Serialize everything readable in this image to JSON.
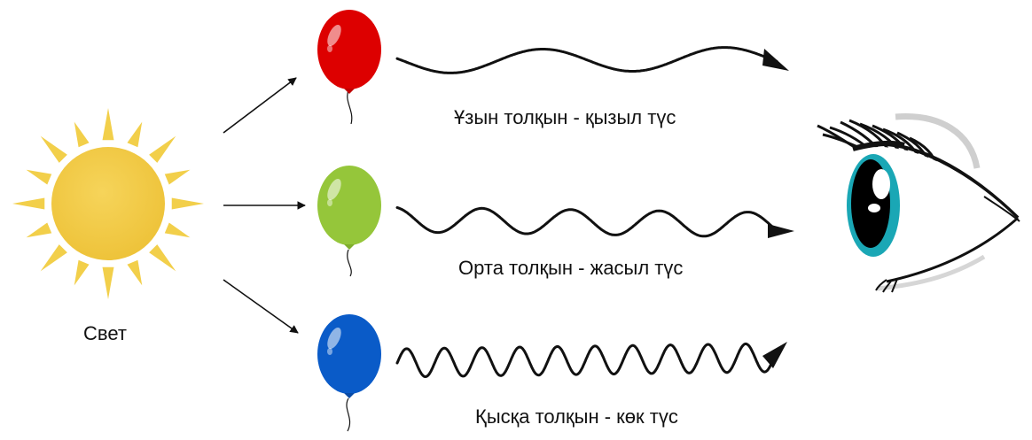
{
  "sun": {
    "label": "Свет",
    "icon": "sun-icon",
    "color": "#f2c53d",
    "ray_color": "#f2cf4a"
  },
  "rows": [
    {
      "balloon_icon": "red-balloon-icon",
      "color": "#dd0000",
      "label": "Ұзын толқын - қызыл түс"
    },
    {
      "balloon_icon": "green-balloon-icon",
      "color": "#95c63a",
      "label": "Орта толқын - жасыл түс"
    },
    {
      "balloon_icon": "blue-balloon-icon",
      "color": "#0a5bc8",
      "label": "Қысқа толқын - көк түс"
    }
  ],
  "eye": {
    "icon": "eye-icon",
    "iris_color": "#1aa7b5"
  },
  "stroke_color": "#111111"
}
